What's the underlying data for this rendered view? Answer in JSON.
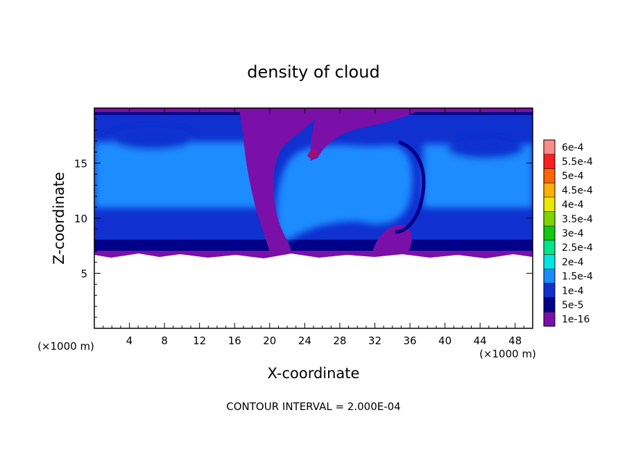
{
  "chart_data": {
    "type": "heatmap",
    "title": "density of cloud",
    "xlabel": "X-coordinate",
    "ylabel": "Z-coordinate",
    "x_unit": "(×1000 m)",
    "y_unit": "(×1000 m)",
    "xlim": [
      0,
      50
    ],
    "ylim": [
      0,
      20
    ],
    "x_ticks": [
      4,
      8,
      12,
      16,
      20,
      24,
      28,
      32,
      36,
      40,
      44,
      48
    ],
    "y_ticks": [
      5,
      10,
      15
    ],
    "footer": "CONTOUR INTERVAL = 2.000E-04",
    "colorbar": {
      "levels": [
        {
          "label": "1e-16",
          "color": "#7a10a8"
        },
        {
          "label": "5e-5",
          "color": "#000088"
        },
        {
          "label": "1e-4",
          "color": "#1030d0"
        },
        {
          "label": "1.5e-4",
          "color": "#1a8cff"
        },
        {
          "label": "2e-4",
          "color": "#00e5e5"
        },
        {
          "label": "2.5e-4",
          "color": "#00e68a"
        },
        {
          "label": "3e-4",
          "color": "#10c810"
        },
        {
          "label": "3.5e-4",
          "color": "#7fd400"
        },
        {
          "label": "4e-4",
          "color": "#e8e800"
        },
        {
          "label": "4.5e-4",
          "color": "#ffb000"
        },
        {
          "label": "5e-4",
          "color": "#ff6400"
        },
        {
          "label": "5.5e-4",
          "color": "#ff1e1e"
        },
        {
          "label": "6e-4",
          "color": "#ff8a8a"
        }
      ]
    },
    "cloud_layer_z": [
      6.5,
      20
    ],
    "observed_max_level": "1.5e-4"
  }
}
